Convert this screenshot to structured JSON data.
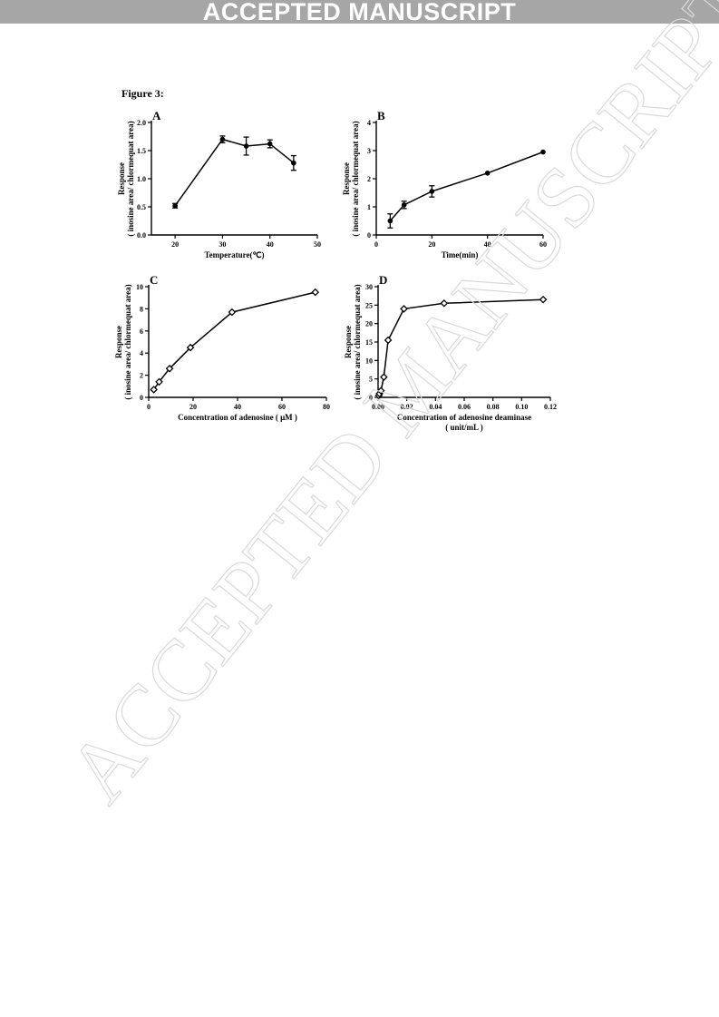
{
  "banner": "ACCEPTED MANUSCRIPT",
  "watermark": "ACCEPTED MANUSCRIPT",
  "figure_label": "Figure 3:",
  "chart_data": [
    {
      "panel": "A",
      "type": "line",
      "marker": "circle",
      "xlabel": "Temperature(℃)",
      "ylabel_line1": "Response",
      "ylabel_line2": "( inosine area/ chlormequat area)",
      "xlim": [
        15,
        50
      ],
      "ylim": [
        0,
        2.0
      ],
      "xticks": [
        "20",
        "30",
        "40",
        "50"
      ],
      "xtick_values": [
        20,
        30,
        40,
        50
      ],
      "yticks": [
        "0.0",
        "0.5",
        "1.0",
        "1.5",
        "2.0"
      ],
      "ytick_values": [
        0,
        0.5,
        1.0,
        1.5,
        2.0
      ],
      "x": [
        20,
        30,
        35,
        40,
        45
      ],
      "y": [
        0.52,
        1.7,
        1.58,
        1.62,
        1.28
      ],
      "err": [
        0.04,
        0.06,
        0.16,
        0.07,
        0.13
      ]
    },
    {
      "panel": "B",
      "type": "line",
      "marker": "circle",
      "xlabel": "Time(min)",
      "ylabel_line1": "Response",
      "ylabel_line2": "( inosine area/ chlormequat area)",
      "xlim": [
        0,
        60
      ],
      "ylim": [
        0,
        4
      ],
      "xticks": [
        "0",
        "20",
        "40",
        "60"
      ],
      "xtick_values": [
        0,
        20,
        40,
        60
      ],
      "yticks": [
        "0",
        "1",
        "2",
        "3",
        "4"
      ],
      "ytick_values": [
        0,
        1,
        2,
        3,
        4
      ],
      "x": [
        5,
        10,
        20,
        40,
        60
      ],
      "y": [
        0.5,
        1.07,
        1.55,
        2.2,
        2.95
      ],
      "err": [
        0.25,
        0.13,
        0.2,
        0.0,
        0.0
      ]
    },
    {
      "panel": "C",
      "type": "line",
      "marker": "diamond",
      "xlabel": "Concentration of adenosine ( μM )",
      "ylabel_line1": "Response",
      "ylabel_line2": "( inosine area/ chlormequat area)",
      "xlim": [
        0,
        80
      ],
      "ylim": [
        0,
        10
      ],
      "xticks": [
        "0",
        "20",
        "40",
        "60",
        "80"
      ],
      "xtick_values": [
        0,
        20,
        40,
        60,
        80
      ],
      "yticks": [
        "0",
        "2",
        "4",
        "6",
        "8",
        "10"
      ],
      "ytick_values": [
        0,
        2,
        4,
        6,
        8,
        10
      ],
      "x": [
        2.3,
        4.7,
        9.4,
        18.8,
        37.5,
        75
      ],
      "y": [
        0.7,
        1.4,
        2.6,
        4.5,
        7.7,
        9.5
      ],
      "err": []
    },
    {
      "panel": "D",
      "type": "line",
      "marker": "diamond",
      "xlabel": "Concentration of adenosine deaminase",
      "xlabel_line2": "( unit/mL )",
      "ylabel_line1": "Response",
      "ylabel_line2": "( inosine area/ chlormequat area)",
      "xlim": [
        0,
        0.12
      ],
      "ylim": [
        0,
        30
      ],
      "xticks": [
        "0.00",
        "0.02",
        "0.04",
        "0.06",
        "0.08",
        "0.10",
        "0.12"
      ],
      "xtick_values": [
        0,
        0.02,
        0.04,
        0.06,
        0.08,
        0.1,
        0.12
      ],
      "yticks": [
        "0",
        "5",
        "10",
        "15",
        "20",
        "25",
        "30"
      ],
      "ytick_values": [
        0,
        5,
        10,
        15,
        20,
        25,
        30
      ],
      "x": [
        0.0005,
        0.001,
        0.002,
        0.004,
        0.007,
        0.018,
        0.046,
        0.115
      ],
      "y": [
        0.5,
        1.0,
        1.8,
        5.5,
        15.5,
        24.0,
        25.5,
        26.5
      ],
      "err": []
    }
  ]
}
